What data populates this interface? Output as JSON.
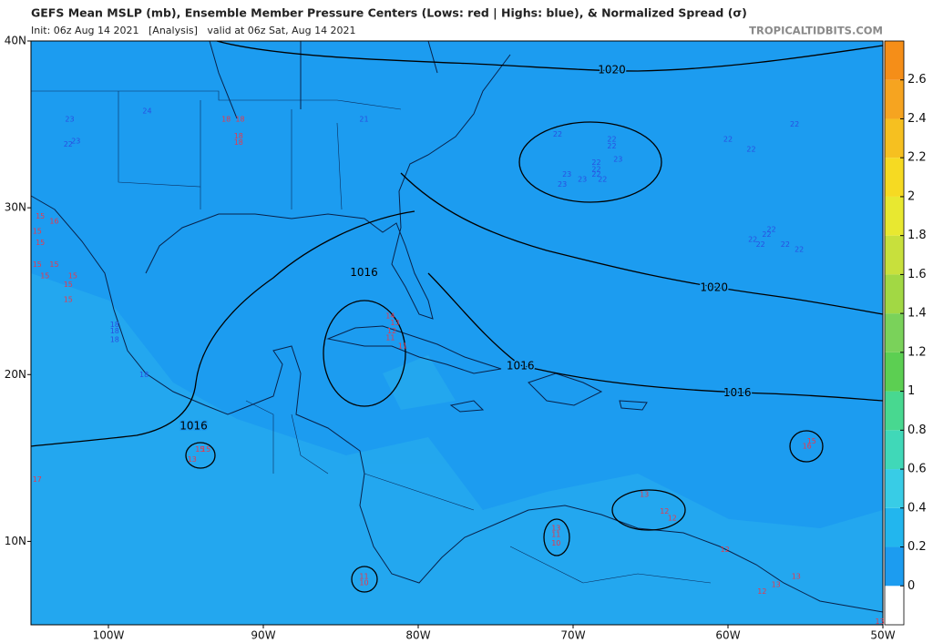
{
  "header": {
    "title": "GEFS Mean MSLP (mb), Ensemble Member Pressure Centers (Lows: red | Highs: blue), & Normalized Spread (σ)",
    "subtitle": "Init: 06z Aug 14 2021   [Analysis]   valid at 06z Sat, Aug 14 2021",
    "watermark": "TROPICALTIDBITS.COM"
  },
  "map": {
    "xlim": [
      -105,
      -50
    ],
    "ylim": [
      5,
      40
    ],
    "background": "#1c9cf0",
    "xticks": [
      {
        "value": -100,
        "label": "100W"
      },
      {
        "value": -90,
        "label": "90W"
      },
      {
        "value": -80,
        "label": "80W"
      },
      {
        "value": -70,
        "label": "70W"
      },
      {
        "value": -60,
        "label": "60W"
      },
      {
        "value": -50,
        "label": "50W"
      }
    ],
    "yticks": [
      {
        "value": 40,
        "label": "40N"
      },
      {
        "value": 30,
        "label": "30N"
      },
      {
        "value": 20,
        "label": "20N"
      },
      {
        "value": 10,
        "label": "10N"
      }
    ],
    "contour_labels": [
      {
        "label": 1020,
        "lon": -67.5,
        "lat": 38.25
      },
      {
        "label": 1016,
        "lon": -83.5,
        "lat": 26.1
      },
      {
        "label": 1020,
        "lon": -60.9,
        "lat": 25.2
      },
      {
        "label": 1016,
        "lon": -73.4,
        "lat": 20.5
      },
      {
        "label": 1016,
        "lon": -59.4,
        "lat": 18.9
      },
      {
        "label": 1016,
        "lon": -94.5,
        "lat": 16.9
      }
    ],
    "low_color": "#e8384c",
    "high_color": "#2a4fe0",
    "lows": [
      {
        "value": 18,
        "lon": -92.4,
        "lat": 35.3
      },
      {
        "value": 18,
        "lon": -91.5,
        "lat": 35.3
      },
      {
        "value": 18,
        "lon": -91.6,
        "lat": 34.3
      },
      {
        "value": 18,
        "lon": -91.6,
        "lat": 33.9
      },
      {
        "value": 15,
        "lon": -104.4,
        "lat": 29.5
      },
      {
        "value": 16,
        "lon": -103.5,
        "lat": 29.2
      },
      {
        "value": 15,
        "lon": -104.6,
        "lat": 28.6
      },
      {
        "value": 15,
        "lon": -104.4,
        "lat": 27.9
      },
      {
        "value": 15,
        "lon": -104.6,
        "lat": 26.6
      },
      {
        "value": 15,
        "lon": -103.5,
        "lat": 26.6
      },
      {
        "value": 15,
        "lon": -104.1,
        "lat": 25.9
      },
      {
        "value": 15,
        "lon": -102.3,
        "lat": 25.9
      },
      {
        "value": 15,
        "lon": -102.6,
        "lat": 25.4
      },
      {
        "value": 15,
        "lon": -102.6,
        "lat": 24.5
      },
      {
        "value": 14,
        "lon": -81.8,
        "lat": 23.5
      },
      {
        "value": 13,
        "lon": -81.5,
        "lat": 23.1
      },
      {
        "value": 12,
        "lon": -81.7,
        "lat": 22.6
      },
      {
        "value": 11,
        "lon": -81.8,
        "lat": 22.2
      },
      {
        "value": 11,
        "lon": -81.0,
        "lat": 21.7
      },
      {
        "value": 15,
        "lon": -94.1,
        "lat": 15.5
      },
      {
        "value": 15,
        "lon": -93.7,
        "lat": 15.5
      },
      {
        "value": 13,
        "lon": -94.6,
        "lat": 14.9
      },
      {
        "value": 11,
        "lon": -83.5,
        "lat": 7.9
      },
      {
        "value": 10,
        "lon": -83.5,
        "lat": 7.5
      },
      {
        "value": 13,
        "lon": -71.1,
        "lat": 10.8
      },
      {
        "value": 11,
        "lon": -71.1,
        "lat": 10.4
      },
      {
        "value": 10,
        "lon": -71.1,
        "lat": 9.9
      },
      {
        "value": 13,
        "lon": -65.4,
        "lat": 12.8
      },
      {
        "value": 12,
        "lon": -64.1,
        "lat": 11.8
      },
      {
        "value": 12,
        "lon": -63.6,
        "lat": 11.4
      },
      {
        "value": 12,
        "lon": -60.2,
        "lat": 9.5
      },
      {
        "value": 13,
        "lon": -56.9,
        "lat": 7.4
      },
      {
        "value": 12,
        "lon": -57.8,
        "lat": 7.0
      },
      {
        "value": 13,
        "lon": -55.6,
        "lat": 7.9
      },
      {
        "value": 16,
        "lon": -54.9,
        "lat": 15.7
      },
      {
        "value": 15,
        "lon": -54.6,
        "lat": 16.0
      },
      {
        "value": 17,
        "lon": -104.6,
        "lat": 13.7
      },
      {
        "value": 13,
        "lon": -50.2,
        "lat": 5.2
      }
    ],
    "highs": [
      {
        "value": 23,
        "lon": -102.5,
        "lat": 35.3
      },
      {
        "value": 23,
        "lon": -102.1,
        "lat": 34.0
      },
      {
        "value": 22,
        "lon": -102.6,
        "lat": 33.8
      },
      {
        "value": 24,
        "lon": -97.5,
        "lat": 35.8
      },
      {
        "value": 21,
        "lon": -83.5,
        "lat": 35.3
      },
      {
        "value": 22,
        "lon": -71.0,
        "lat": 34.4
      },
      {
        "value": 22,
        "lon": -67.5,
        "lat": 34.1
      },
      {
        "value": 22,
        "lon": -67.5,
        "lat": 33.7
      },
      {
        "value": 23,
        "lon": -67.1,
        "lat": 32.9
      },
      {
        "value": 22,
        "lon": -68.5,
        "lat": 32.7
      },
      {
        "value": 22,
        "lon": -68.5,
        "lat": 32.3
      },
      {
        "value": 22,
        "lon": -68.5,
        "lat": 32.0
      },
      {
        "value": 23,
        "lon": -70.4,
        "lat": 32.0
      },
      {
        "value": 23,
        "lon": -69.4,
        "lat": 31.7
      },
      {
        "value": 22,
        "lon": -68.1,
        "lat": 31.7
      },
      {
        "value": 23,
        "lon": -70.7,
        "lat": 31.4
      },
      {
        "value": 22,
        "lon": -60.0,
        "lat": 34.1
      },
      {
        "value": 22,
        "lon": -58.5,
        "lat": 33.5
      },
      {
        "value": 22,
        "lon": -55.7,
        "lat": 35.0
      },
      {
        "value": 22,
        "lon": -57.2,
        "lat": 28.7
      },
      {
        "value": 22,
        "lon": -57.5,
        "lat": 28.4
      },
      {
        "value": 22,
        "lon": -58.4,
        "lat": 28.1
      },
      {
        "value": 22,
        "lon": -57.9,
        "lat": 27.8
      },
      {
        "value": 22,
        "lon": -56.3,
        "lat": 27.8
      },
      {
        "value": 22,
        "lon": -55.4,
        "lat": 27.5
      },
      {
        "value": 18,
        "lon": -99.6,
        "lat": 23.0
      },
      {
        "value": 18,
        "lon": -99.6,
        "lat": 22.6
      },
      {
        "value": 18,
        "lon": -99.6,
        "lat": 22.1
      },
      {
        "value": 18,
        "lon": -97.7,
        "lat": 20.0
      }
    ]
  },
  "colorbar": {
    "lim": [
      -0.2,
      2.8
    ],
    "ticks": [
      0,
      0.2,
      0.4,
      0.6,
      0.8,
      1,
      1.2,
      1.4,
      1.6,
      1.8,
      2,
      2.2,
      2.4,
      2.6
    ],
    "colors": [
      "#ffffff",
      "#1c9cf0",
      "#22b6ee",
      "#38cce6",
      "#40d8b8",
      "#48d890",
      "#5ccf52",
      "#7ad25a",
      "#a2d844",
      "#c8e03c",
      "#e8e830",
      "#f6da22",
      "#f6c020",
      "#f6a420",
      "#f58e18"
    ]
  }
}
